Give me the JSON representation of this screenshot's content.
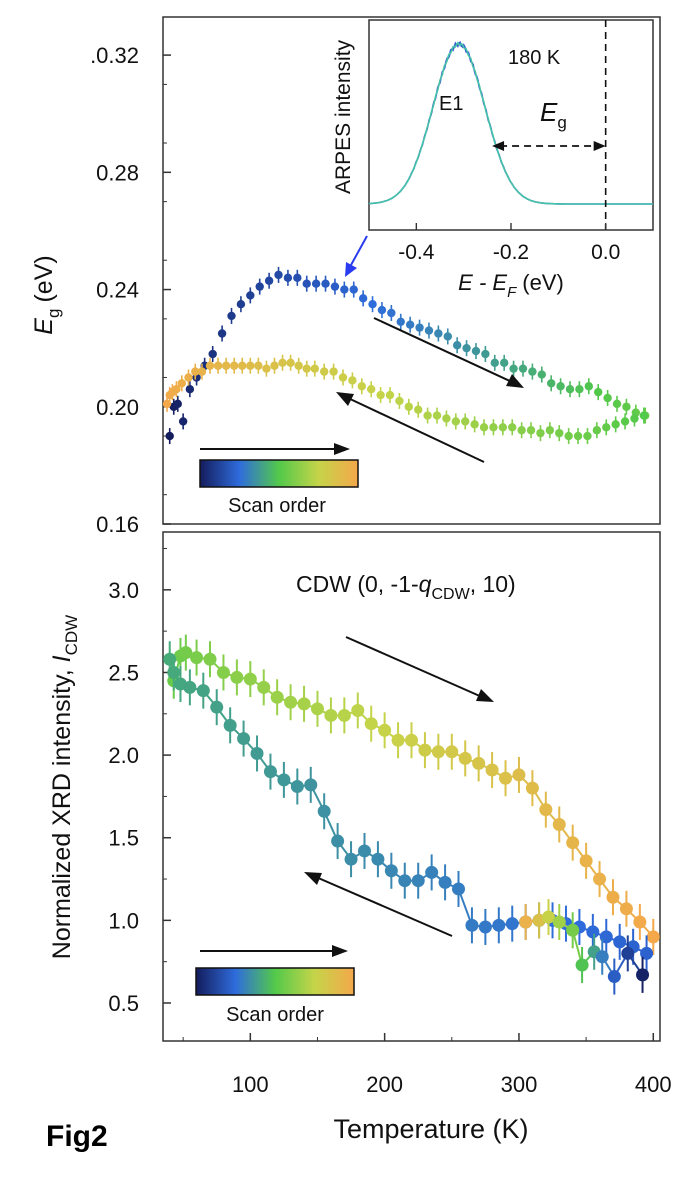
{
  "figure_label": "Fig2",
  "chart_data": [
    {
      "type": "scatter",
      "ylabel_main": "E",
      "ylabel_sub": "g",
      "ylabel_unit": "(eV)",
      "ylim": [
        0.16,
        0.333
      ],
      "xlim": [
        35,
        405
      ],
      "yticks": [
        0.16,
        0.2,
        0.24,
        0.28,
        0.32
      ],
      "ytick_labels": [
        "0.16",
        "0.20",
        "0.24",
        "0.28",
        "0.32"
      ],
      "ytick_top_label": ".0.32",
      "legend_caption": "Scan order",
      "colors": {
        "scan_start": "#1a2a6e",
        "scan_mid": "#52c94a",
        "scan_end": "#f4a84a"
      },
      "series": [
        {
          "x": [
            40,
            43,
            46,
            50,
            55,
            60,
            66,
            72,
            79,
            86,
            93,
            100,
            107,
            114,
            121,
            128,
            135,
            142,
            149,
            156,
            163,
            170,
            177,
            184,
            191,
            198,
            205,
            212,
            219,
            226,
            233,
            240,
            247,
            254,
            261,
            268,
            275,
            282,
            289,
            296,
            303,
            310,
            317,
            324,
            331,
            338,
            345,
            352,
            359,
            366,
            373,
            380,
            387,
            394
          ],
          "y": [
            0.19,
            0.2,
            0.201,
            0.195,
            0.206,
            0.21,
            0.214,
            0.218,
            0.225,
            0.231,
            0.235,
            0.238,
            0.241,
            0.243,
            0.245,
            0.244,
            0.244,
            0.242,
            0.242,
            0.242,
            0.241,
            0.24,
            0.24,
            0.237,
            0.235,
            0.233,
            0.232,
            0.229,
            0.228,
            0.227,
            0.226,
            0.225,
            0.224,
            0.221,
            0.22,
            0.219,
            0.218,
            0.215,
            0.215,
            0.213,
            0.213,
            0.212,
            0.211,
            0.208,
            0.207,
            0.206,
            0.206,
            0.207,
            0.205,
            0.203,
            0.201,
            0.2,
            0.198,
            0.197
          ]
        },
        {
          "x": [
            38,
            40,
            42,
            45,
            49,
            54,
            59,
            64,
            70,
            76,
            82,
            88,
            94,
            100,
            106,
            112,
            118,
            124,
            130,
            136,
            142,
            148,
            155,
            162,
            169,
            176,
            183,
            190,
            197,
            204,
            211,
            218,
            225,
            232,
            239,
            246,
            253,
            260,
            267,
            274,
            281,
            288,
            295,
            302,
            309,
            316,
            323,
            330,
            337,
            344,
            351,
            358,
            365,
            372,
            379,
            386,
            393
          ],
          "y": [
            0.201,
            0.204,
            0.205,
            0.206,
            0.208,
            0.21,
            0.212,
            0.212,
            0.214,
            0.214,
            0.214,
            0.214,
            0.214,
            0.214,
            0.214,
            0.213,
            0.214,
            0.215,
            0.215,
            0.214,
            0.213,
            0.213,
            0.212,
            0.212,
            0.21,
            0.209,
            0.207,
            0.206,
            0.204,
            0.204,
            0.202,
            0.2,
            0.199,
            0.197,
            0.197,
            0.196,
            0.195,
            0.195,
            0.194,
            0.193,
            0.193,
            0.193,
            0.193,
            0.192,
            0.192,
            0.191,
            0.192,
            0.191,
            0.19,
            0.19,
            0.19,
            0.192,
            0.193,
            0.194,
            0.195,
            0.196,
            0.197
          ]
        }
      ],
      "inset": {
        "ylabel": "ARPES intensity",
        "xlabel_main": "E - E",
        "xlabel_sub": "F",
        "xlabel_unit": "(eV)",
        "xlim": [
          -0.5,
          0.1
        ],
        "xticks": [
          -0.4,
          -0.2,
          0.0
        ],
        "xtick_labels": [
          "-0.4",
          "-0.2",
          "0.0"
        ],
        "temperature": "180 K",
        "peak_label": "E1",
        "gap_label_main": "E",
        "gap_label_sub": "g",
        "peak_center": -0.31,
        "peak_width": 0.055,
        "gap_edge": -0.24
      }
    },
    {
      "type": "line",
      "ylabel_main": "Normalized XRD intensity, ",
      "ylabel_italic": "I",
      "ylabel_sub": "CDW",
      "xlabel": "Temperature (K)",
      "ylim": [
        0.27,
        3.35
      ],
      "xlim": [
        35,
        405
      ],
      "yticks": [
        0.5,
        1.0,
        1.5,
        2.0,
        2.5,
        3.0
      ],
      "ytick_labels": [
        "0.5",
        "1.0",
        "1.5",
        "2.0",
        "2.5",
        "3.0"
      ],
      "xticks": [
        100,
        200,
        300,
        400
      ],
      "xtick_labels": [
        "100",
        "200",
        "300",
        "400"
      ],
      "annotation_pre": "CDW (0, -1-",
      "annotation_italic": "q",
      "annotation_sub": "CDW",
      "annotation_post": ", 10)",
      "legend_caption": "Scan order",
      "series": [
        {
          "x": [
            43,
            48,
            52,
            60,
            70,
            80,
            90,
            100,
            110,
            120,
            130,
            140,
            150,
            160,
            170,
            180,
            190,
            200,
            210,
            220,
            230,
            240,
            250,
            260,
            270,
            280,
            290,
            300,
            310,
            320,
            330,
            340,
            350,
            360,
            370,
            380,
            390,
            400
          ],
          "y": [
            2.45,
            2.6,
            2.62,
            2.59,
            2.58,
            2.5,
            2.47,
            2.46,
            2.41,
            2.35,
            2.32,
            2.31,
            2.28,
            2.24,
            2.24,
            2.27,
            2.19,
            2.15,
            2.09,
            2.09,
            2.03,
            2.02,
            2.02,
            1.98,
            1.95,
            1.91,
            1.86,
            1.88,
            1.8,
            1.67,
            1.58,
            1.47,
            1.36,
            1.25,
            1.14,
            1.07,
            0.99,
            0.9
          ]
        },
        {
          "x": [
            40,
            43,
            48,
            55,
            65,
            75,
            85,
            95,
            105,
            115,
            125,
            135,
            145,
            155,
            165,
            175,
            185,
            195,
            205,
            215,
            225,
            235,
            245,
            255,
            265,
            275,
            285,
            295,
            305,
            315,
            325,
            335,
            345,
            355,
            365,
            375,
            385,
            395
          ],
          "y": [
            2.58,
            2.5,
            2.43,
            2.41,
            2.39,
            2.29,
            2.18,
            2.1,
            2.01,
            1.9,
            1.85,
            1.81,
            1.82,
            1.66,
            1.48,
            1.37,
            1.42,
            1.37,
            1.3,
            1.24,
            1.24,
            1.29,
            1.23,
            1.19,
            0.97,
            0.96,
            0.97,
            0.98,
            0.99,
            1.0,
            1.0,
            0.98,
            0.96,
            0.93,
            0.9,
            0.87,
            0.84,
            0.8
          ]
        },
        {
          "x": [
            305,
            315,
            322,
            330,
            340,
            347,
            356,
            362,
            371,
            381,
            392
          ],
          "y": [
            0.99,
            1.0,
            1.02,
            0.99,
            0.94,
            0.73,
            0.81,
            0.78,
            0.66,
            0.8,
            0.67
          ]
        }
      ]
    }
  ]
}
